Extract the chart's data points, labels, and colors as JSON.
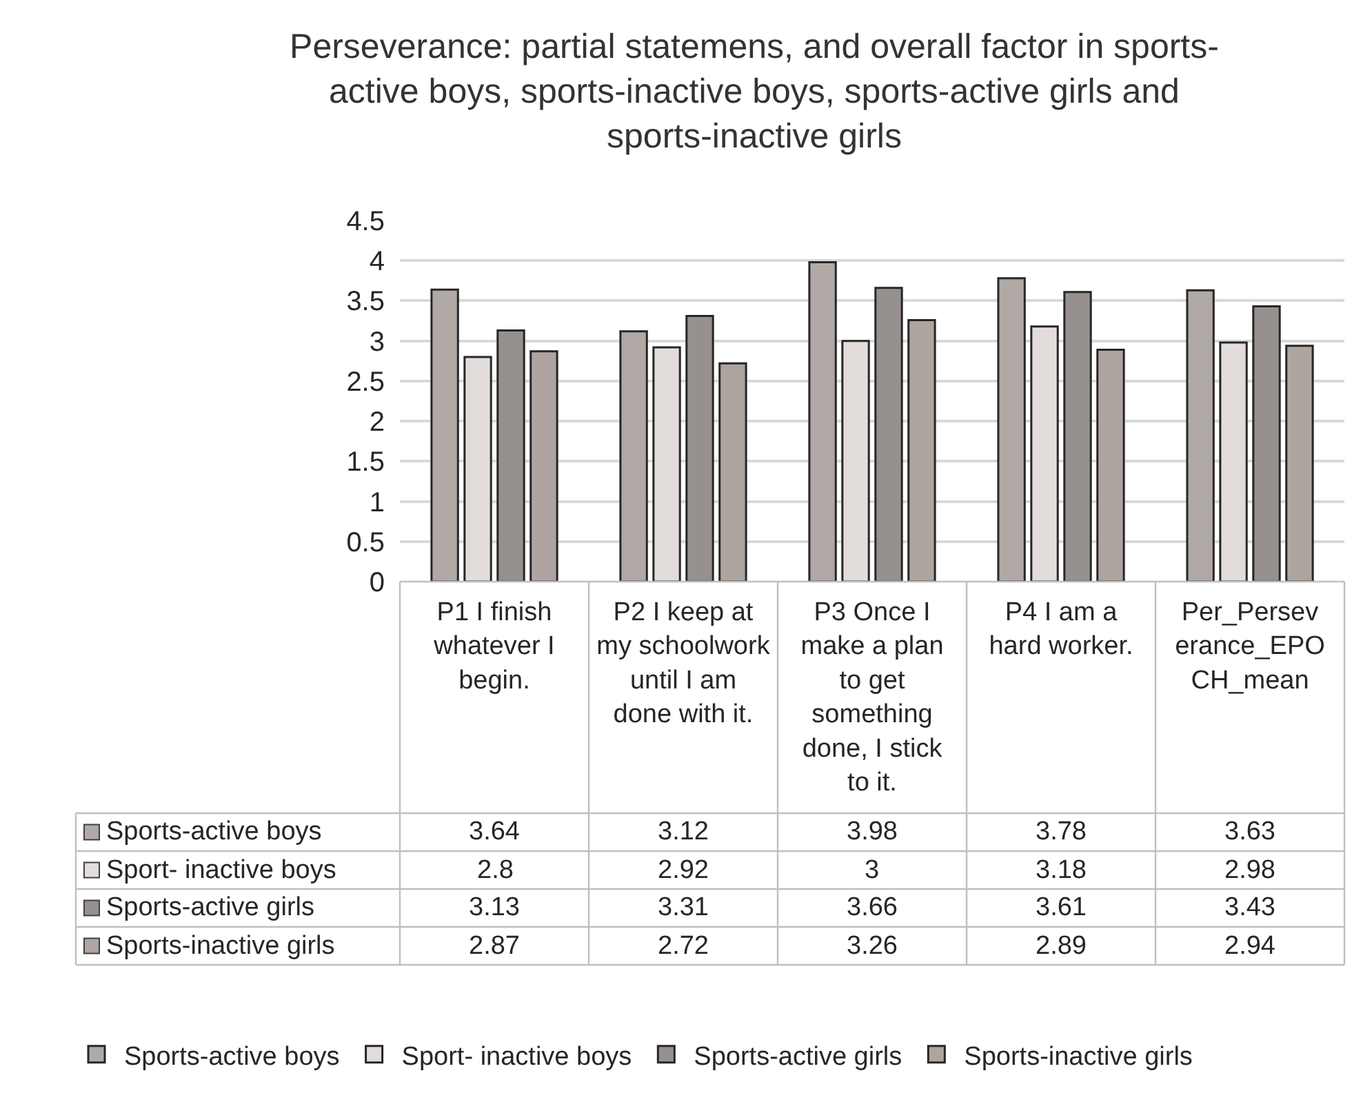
{
  "chart_data": {
    "type": "bar",
    "title": "Perseverance: partial statemens, and overall factor in sports-active boys, sports-inactive boys, sports-active girls and sports-inactive girls",
    "categories": [
      "P1 I finish whatever I begin.",
      "P2 I keep at my schoolwork until I am done with it.",
      "P3 Once I make a plan to get something done, I stick to it.",
      "P4 I am a hard worker.",
      "Per_Perseverance_EPOCH_mean"
    ],
    "series": [
      {
        "name": "Sports-active boys",
        "color": "#b1a9a6",
        "values": [
          3.64,
          3.12,
          3.98,
          3.78,
          3.63
        ]
      },
      {
        "name": "Sport- inactive boys",
        "color": "#e2dddb",
        "values": [
          2.8,
          2.92,
          3,
          3.18,
          2.98
        ]
      },
      {
        "name": "Sports-active girls",
        "color": "#96908e",
        "values": [
          3.13,
          3.31,
          3.66,
          3.61,
          3.43
        ]
      },
      {
        "name": "Sports-inactive girls",
        "color": "#aea4a0",
        "values": [
          2.87,
          2.72,
          3.26,
          2.89,
          2.94
        ]
      }
    ],
    "ylim": [
      0,
      4.5
    ],
    "yticks": [
      0,
      0.5,
      1,
      1.5,
      2,
      2.5,
      3,
      3.5,
      4,
      4.5
    ],
    "grid": "y",
    "legend": "bottom",
    "data_labels": true
  }
}
